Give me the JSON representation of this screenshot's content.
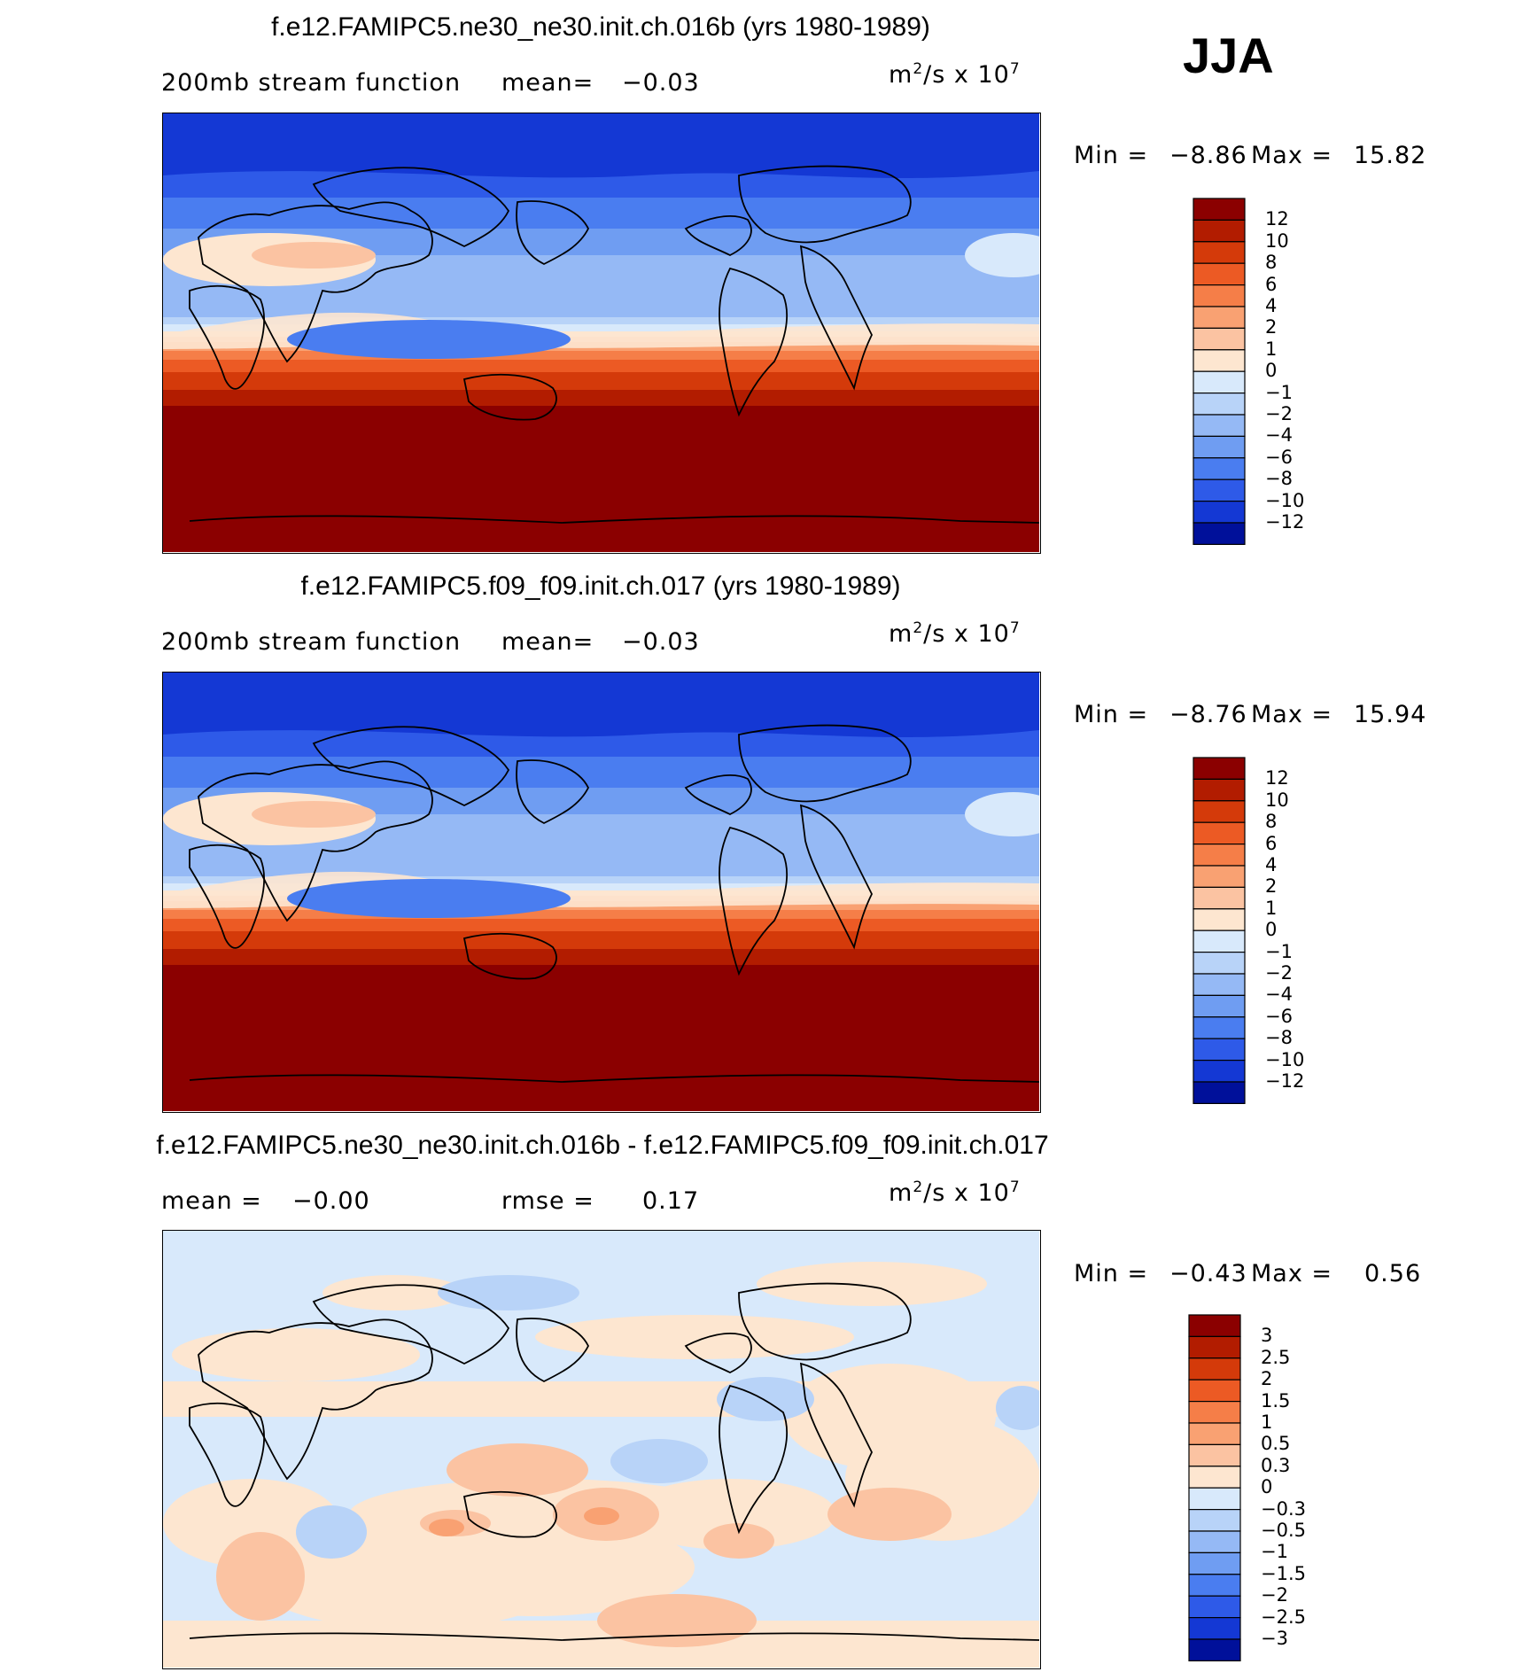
{
  "season": "JJA",
  "units_base": "m",
  "units_sup": "2",
  "units_mid": "/s x 10",
  "units_exp": "7",
  "panels": [
    {
      "title": "f.e12.FAMIPC5.ne30_ne30.init.ch.016b (yrs 1980-1989)",
      "left_label": "200mb stream function",
      "stat_label": "mean=",
      "stat_value": "−0.03",
      "minmax": {
        "min_label": "Min =",
        "min": "−8.86",
        "max_label": "Max =",
        "max": "15.82"
      },
      "colorbar": {
        "labels": [
          "12",
          "10",
          "8",
          "6",
          "4",
          "2",
          "1",
          "0",
          "−1",
          "−2",
          "−4",
          "−6",
          "−8",
          "−10",
          "−12"
        ],
        "colors": [
          "#8b0000",
          "#b21c00",
          "#d43a0a",
          "#ec5a24",
          "#f57e48",
          "#f9a172",
          "#fbc3a2",
          "#fde6d0",
          "#d8e9fb",
          "#b8d3f8",
          "#95b9f5",
          "#6f9df2",
          "#4a7df0",
          "#2e5ae8",
          "#1438d4",
          "#00109a"
        ]
      }
    },
    {
      "title": "f.e12.FAMIPC5.f09_f09.init.ch.017 (yrs 1980-1989)",
      "left_label": "200mb stream function",
      "stat_label": "mean=",
      "stat_value": "−0.03",
      "minmax": {
        "min_label": "Min =",
        "min": "−8.76",
        "max_label": "Max =",
        "max": "15.94"
      },
      "colorbar": {
        "labels": [
          "12",
          "10",
          "8",
          "6",
          "4",
          "2",
          "1",
          "0",
          "−1",
          "−2",
          "−4",
          "−6",
          "−8",
          "−10",
          "−12"
        ],
        "colors": [
          "#8b0000",
          "#b21c00",
          "#d43a0a",
          "#ec5a24",
          "#f57e48",
          "#f9a172",
          "#fbc3a2",
          "#fde6d0",
          "#d8e9fb",
          "#b8d3f8",
          "#95b9f5",
          "#6f9df2",
          "#4a7df0",
          "#2e5ae8",
          "#1438d4",
          "#00109a"
        ]
      }
    },
    {
      "title": "f.e12.FAMIPC5.ne30_ne30.init.ch.016b - f.e12.FAMIPC5.f09_f09.init.ch.017",
      "left_label": "mean =",
      "left_value": "−0.00",
      "stat_label": "rmse =",
      "stat_value": "0.17",
      "minmax": {
        "min_label": "Min =",
        "min": "−0.43",
        "max_label": "Max =",
        "max": "0.56"
      },
      "colorbar": {
        "labels": [
          "3",
          "2.5",
          "2",
          "1.5",
          "1",
          "0.5",
          "0.3",
          "0",
          "−0.3",
          "−0.5",
          "−1",
          "−1.5",
          "−2",
          "−2.5",
          "−3"
        ],
        "colors": [
          "#8b0000",
          "#b21c00",
          "#d43a0a",
          "#ec5a24",
          "#f57e48",
          "#f9a172",
          "#fbc3a2",
          "#fde6d0",
          "#d8e9fb",
          "#b8d3f8",
          "#95b9f5",
          "#6f9df2",
          "#4a7df0",
          "#2e5ae8",
          "#1438d4",
          "#00109a"
        ]
      }
    }
  ]
}
